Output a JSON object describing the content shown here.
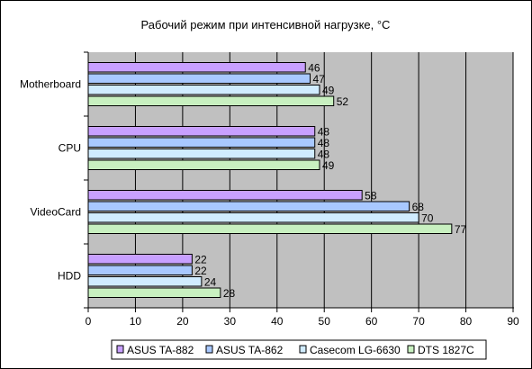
{
  "chart_data": {
    "type": "bar",
    "orientation": "horizontal",
    "title": "Рабочий режим при интенсивной нагрузке, °С",
    "categories": [
      "Motherboard",
      "CPU",
      "VideoCard",
      "HDD"
    ],
    "series": [
      {
        "name": "ASUS TA-882",
        "color": "#c8a0ff",
        "values": [
          46,
          48,
          58,
          22
        ]
      },
      {
        "name": "ASUS TA-862",
        "color": "#a8c8ff",
        "values": [
          47,
          48,
          68,
          22
        ]
      },
      {
        "name": "Casecom LG-6630",
        "color": "#d0ecff",
        "values": [
          49,
          48,
          70,
          24
        ]
      },
      {
        "name": "DTS 1827C",
        "color": "#c8f0c0",
        "values": [
          52,
          49,
          77,
          28
        ]
      }
    ],
    "xlim": [
      0,
      90
    ],
    "xticks": [
      0,
      10,
      20,
      30,
      40,
      50,
      60,
      70,
      80,
      90
    ],
    "grid": "vertical",
    "legend": "bottom",
    "data_labels": true,
    "xlabel": "",
    "ylabel": ""
  }
}
